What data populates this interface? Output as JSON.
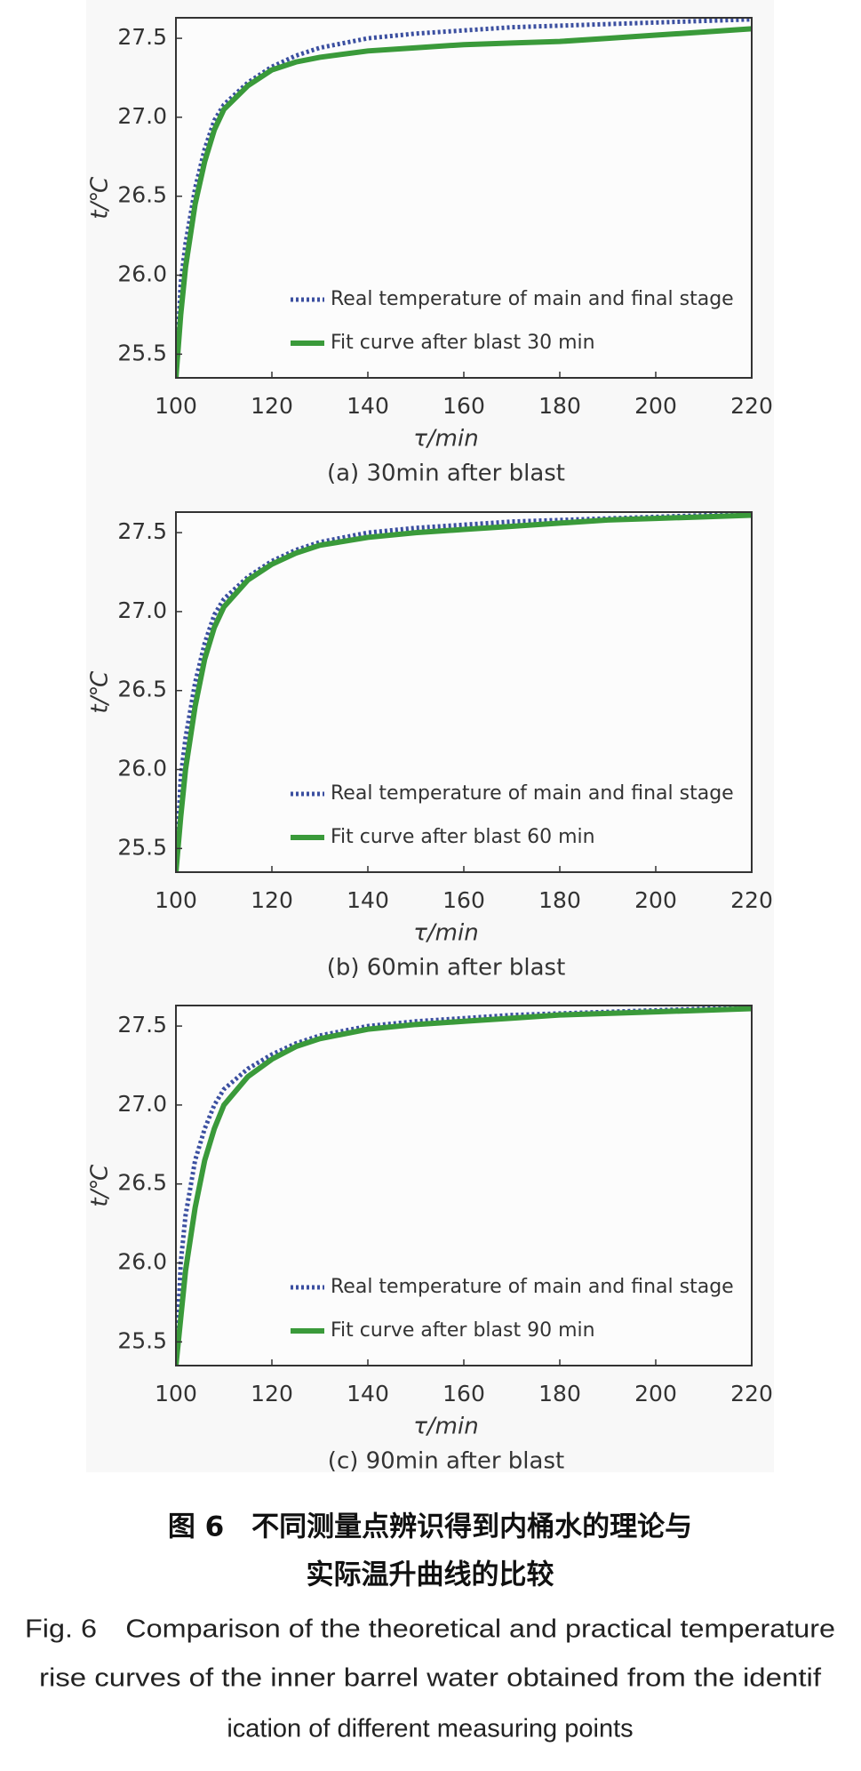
{
  "chart_data": [
    {
      "type": "line",
      "caption": "(a) 30min after blast",
      "xlabel": "τ/min",
      "ylabel": "t/℃",
      "x": [
        100,
        101,
        102,
        104,
        106,
        108,
        110,
        115,
        120,
        125,
        130,
        140,
        150,
        160,
        170,
        180,
        190,
        200,
        210,
        220
      ],
      "series": [
        {
          "name": "Real temperature of main and final stage",
          "color": "#3b4fa0",
          "linestyle": "dotted",
          "values": [
            25.35,
            25.95,
            26.2,
            26.55,
            26.8,
            26.98,
            27.08,
            27.22,
            27.32,
            27.39,
            27.44,
            27.5,
            27.53,
            27.55,
            27.57,
            27.58,
            27.59,
            27.6,
            27.61,
            27.62
          ]
        },
        {
          "name": "Fit curve after blast 30 min",
          "color": "#3a9a3a",
          "linestyle": "solid",
          "values": [
            25.35,
            25.75,
            26.05,
            26.45,
            26.72,
            26.92,
            27.05,
            27.2,
            27.3,
            27.35,
            27.38,
            27.42,
            27.44,
            27.46,
            27.47,
            27.48,
            27.5,
            27.52,
            27.54,
            27.56
          ]
        }
      ],
      "xlim": [
        100,
        220
      ],
      "ylim": [
        25.35,
        27.63
      ],
      "xticks": [
        100,
        120,
        140,
        160,
        180,
        200,
        220
      ],
      "yticks": [
        25.5,
        {
          "value": 26.0,
          "label": "26.0"
        },
        26.5,
        {
          "value": 27.0,
          "label": "27.0"
        },
        27.5
      ]
    },
    {
      "type": "line",
      "caption": "(b) 60min after blast",
      "xlabel": "τ/min",
      "ylabel": "t/℃",
      "x": [
        100,
        101,
        102,
        104,
        106,
        108,
        110,
        115,
        120,
        125,
        130,
        140,
        150,
        160,
        170,
        180,
        190,
        200,
        210,
        220
      ],
      "series": [
        {
          "name": "Real temperature of main and final stage",
          "color": "#3b4fa0",
          "linestyle": "dotted",
          "values": [
            25.35,
            25.95,
            26.2,
            26.55,
            26.8,
            26.98,
            27.08,
            27.22,
            27.32,
            27.39,
            27.44,
            27.5,
            27.53,
            27.55,
            27.57,
            27.58,
            27.59,
            27.6,
            27.61,
            27.62
          ]
        },
        {
          "name": "Fit curve after blast 60 min",
          "color": "#3a9a3a",
          "linestyle": "solid",
          "values": [
            25.35,
            25.7,
            26.0,
            26.4,
            26.7,
            26.9,
            27.03,
            27.2,
            27.3,
            27.37,
            27.42,
            27.47,
            27.5,
            27.52,
            27.54,
            27.56,
            27.58,
            27.59,
            27.6,
            27.61
          ]
        }
      ],
      "xlim": [
        100,
        220
      ],
      "ylim": [
        25.35,
        27.63
      ],
      "xticks": [
        100,
        120,
        140,
        160,
        180,
        200,
        220
      ],
      "yticks": [
        25.5,
        {
          "value": 26.0,
          "label": "26.0"
        },
        26.5,
        {
          "value": 27.0,
          "label": "27.0"
        },
        27.5
      ]
    },
    {
      "type": "line",
      "caption": "(c) 90min after blast",
      "xlabel": "τ/min",
      "ylabel": "t/℃",
      "x": [
        100,
        101,
        102,
        104,
        106,
        108,
        110,
        115,
        120,
        125,
        130,
        140,
        150,
        160,
        170,
        180,
        190,
        200,
        210,
        220
      ],
      "series": [
        {
          "name": "Real temperature of main and final stage",
          "color": "#3b4fa0",
          "linestyle": "dotted",
          "values": [
            25.35,
            26.0,
            26.3,
            26.65,
            26.85,
            27.0,
            27.1,
            27.23,
            27.32,
            27.39,
            27.44,
            27.5,
            27.53,
            27.55,
            27.57,
            27.58,
            27.59,
            27.6,
            27.61,
            27.62
          ]
        },
        {
          "name": "Fit curve after blast 90 min",
          "color": "#3a9a3a",
          "linestyle": "solid",
          "values": [
            25.35,
            25.65,
            25.95,
            26.35,
            26.65,
            26.85,
            27.0,
            27.18,
            27.29,
            27.37,
            27.42,
            27.48,
            27.51,
            27.53,
            27.55,
            27.57,
            27.58,
            27.59,
            27.6,
            27.61
          ]
        }
      ],
      "xlim": [
        100,
        220
      ],
      "ylim": [
        25.35,
        27.63
      ],
      "xticks": [
        100,
        120,
        140,
        160,
        180,
        200,
        220
      ],
      "yticks": [
        25.5,
        {
          "value": 26.0,
          "label": "26.0"
        },
        26.5,
        {
          "value": 27.0,
          "label": "27.0"
        },
        27.5
      ]
    }
  ],
  "caption": {
    "zh": [
      "图 6　不同测量点辨识得到内桶水的理论与",
      "实际温升曲线的比较"
    ],
    "en": [
      "Fig. 6　Comparison of the theoretical and practical temperature",
      "rise curves of the inner barrel water obtained from the identif",
      "ication of different measuring points"
    ]
  }
}
